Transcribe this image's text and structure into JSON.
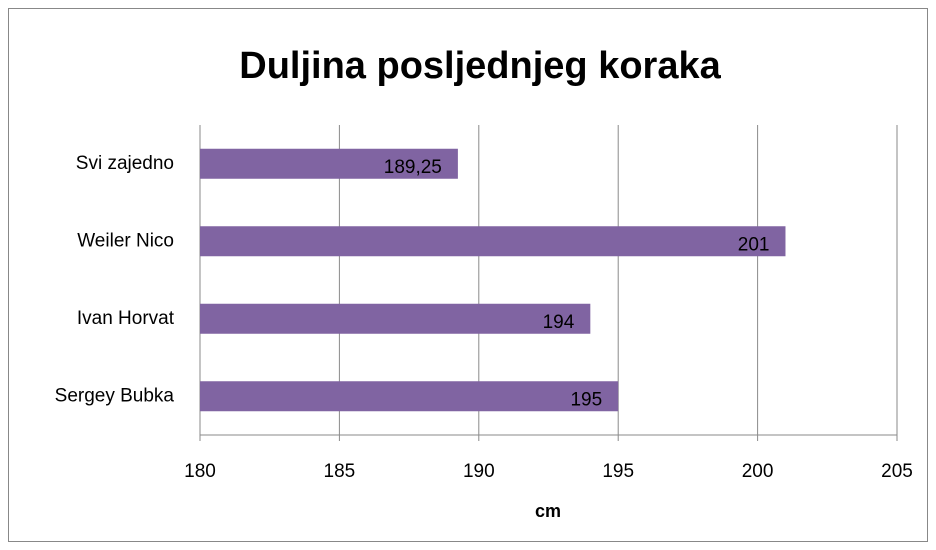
{
  "chart_data": {
    "type": "bar",
    "orientation": "horizontal",
    "title": "Duljina posljednjeg koraka",
    "x_label": "cm",
    "categories": [
      "Svi zajedno",
      "Weiler Nico",
      "Ivan Horvat",
      "Sergey Bubka"
    ],
    "values": [
      189.25,
      201,
      194,
      195
    ],
    "value_labels": [
      "189,25",
      "201",
      "194",
      "195"
    ],
    "color": "#8064a2",
    "xlim": [
      180,
      205
    ],
    "xticks": [
      180,
      185,
      190,
      195,
      200,
      205
    ],
    "grid": true
  }
}
